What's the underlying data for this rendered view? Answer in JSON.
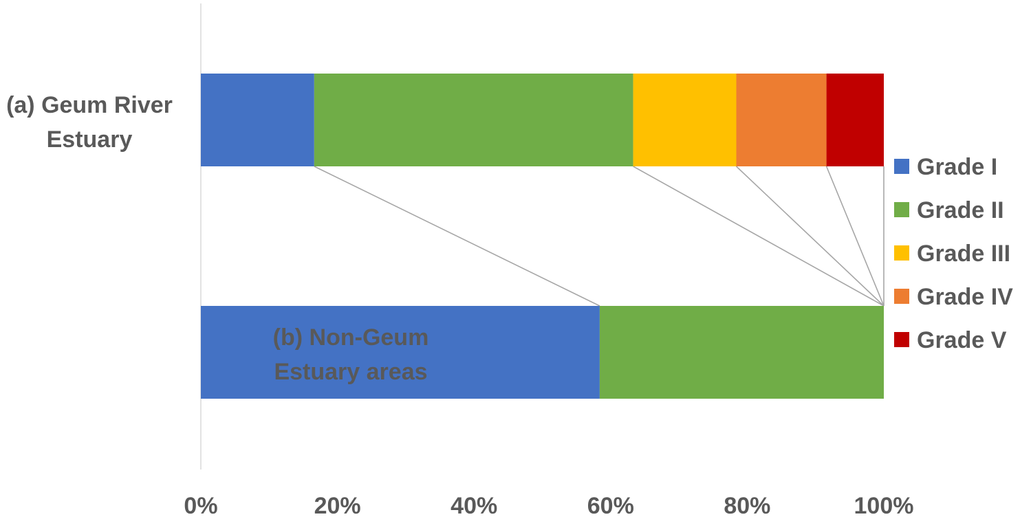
{
  "chart_data": {
    "type": "bar",
    "orientation": "horizontal",
    "stacked": "percent",
    "categories": [
      "(a) Geum River Estuary",
      "(b) Non-Geum Estuary areas"
    ],
    "category_label_lines": [
      [
        "(a) Geum River",
        "Estuary"
      ],
      [
        "(b) Non-Geum",
        "Estuary areas"
      ]
    ],
    "series": [
      {
        "name": "Grade I",
        "color": "#4472C4",
        "values": [
          16.6,
          58.4
        ]
      },
      {
        "name": "Grade II",
        "color": "#70AD47",
        "values": [
          46.7,
          41.6
        ]
      },
      {
        "name": "Grade III",
        "color": "#FFC000",
        "values": [
          15.1,
          0
        ]
      },
      {
        "name": "Grade IV",
        "color": "#ED7D31",
        "values": [
          13.2,
          0
        ]
      },
      {
        "name": "Grade V",
        "color": "#C00000",
        "values": [
          8.4,
          0
        ]
      }
    ],
    "x_ticks": [
      "0%",
      "20%",
      "40%",
      "60%",
      "80%",
      "100%"
    ],
    "xlim": [
      0,
      100
    ],
    "series_lines": true,
    "grid": false,
    "legend_position": "right",
    "title": "",
    "xlabel": "",
    "ylabel": ""
  }
}
